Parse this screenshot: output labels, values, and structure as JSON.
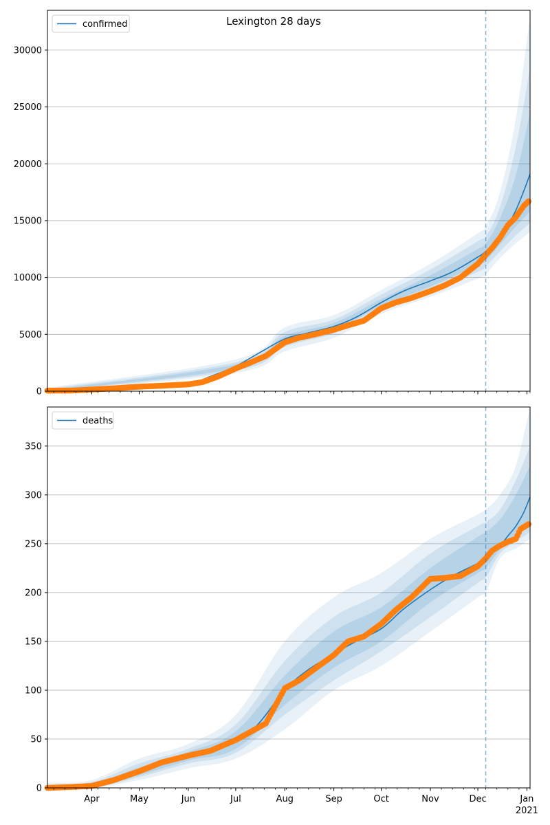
{
  "figure": {
    "title": "Lexington 28 days"
  },
  "chart_data": [
    {
      "type": "line",
      "legend": [
        "confirmed"
      ],
      "legend_position": "top-left",
      "grid": "y",
      "ylim": [
        0,
        33500
      ],
      "yticks": [
        0,
        5000,
        10000,
        15000,
        20000,
        25000,
        30000
      ],
      "x_range": [
        "2020-03-04",
        "2021-01-03"
      ],
      "vline_date": "2020-12-06",
      "colors": {
        "model": "#1f77b4",
        "observed": "#ff7f0e",
        "band": "#1f77b4",
        "vline": "#1f77b4"
      },
      "model_curve": {
        "name": "confirmed",
        "x": [
          "2020-03-04",
          "2020-04-01",
          "2020-05-01",
          "2020-06-01",
          "2020-06-15",
          "2020-07-01",
          "2020-07-15",
          "2020-08-01",
          "2020-08-15",
          "2020-09-01",
          "2020-09-15",
          "2020-10-01",
          "2020-10-15",
          "2020-11-01",
          "2020-11-15",
          "2020-12-01",
          "2020-12-06",
          "2020-12-15",
          "2020-12-20",
          "2020-12-25",
          "2020-12-30",
          "2021-01-03"
        ],
        "y": [
          0,
          100,
          350,
          700,
          1300,
          2200,
          3300,
          4600,
          5100,
          5700,
          6500,
          7800,
          8800,
          9700,
          10500,
          11800,
          12300,
          13600,
          14600,
          15900,
          17600,
          19100
        ]
      },
      "bands": {
        "x": [
          "2020-03-04",
          "2020-07-01",
          "2020-08-01",
          "2020-09-01",
          "2020-10-01",
          "2020-11-01",
          "2020-12-01",
          "2020-12-06",
          "2020-12-15",
          "2020-12-25",
          "2021-01-03"
        ],
        "upper": [
          [
            300,
            2800,
            5600,
            6700,
            8900,
            11200,
            13900,
            14500,
            17500,
            24000,
            33000
          ],
          [
            200,
            2550,
            5200,
            6300,
            8500,
            10700,
            13200,
            13600,
            16200,
            21500,
            28500
          ],
          [
            120,
            2350,
            4850,
            6000,
            8100,
            10200,
            12500,
            13000,
            15200,
            19000,
            24500
          ]
        ],
        "lower": [
          [
            0,
            1600,
            3500,
            4700,
            6800,
            8300,
            9900,
            10300,
            11700,
            13000,
            14000
          ],
          [
            0,
            1800,
            3900,
            5100,
            7200,
            8800,
            10500,
            11000,
            12300,
            13700,
            14800
          ],
          [
            0,
            2000,
            4300,
            5400,
            7500,
            9200,
            11100,
            11500,
            12900,
            14500,
            15800
          ]
        ]
      },
      "observed": {
        "x": [
          "2020-03-04",
          "2020-03-20",
          "2020-04-01",
          "2020-04-15",
          "2020-05-01",
          "2020-05-15",
          "2020-06-01",
          "2020-06-10",
          "2020-06-20",
          "2020-07-01",
          "2020-07-10",
          "2020-07-20",
          "2020-08-01",
          "2020-08-10",
          "2020-08-20",
          "2020-09-01",
          "2020-09-10",
          "2020-09-20",
          "2020-10-01",
          "2020-10-10",
          "2020-10-20",
          "2020-11-01",
          "2020-11-10",
          "2020-11-20",
          "2020-12-01",
          "2020-12-06",
          "2020-12-10",
          "2020-12-15",
          "2020-12-20",
          "2020-12-25",
          "2020-12-30",
          "2021-01-02"
        ],
        "y": [
          50,
          60,
          150,
          250,
          400,
          480,
          600,
          800,
          1300,
          2000,
          2500,
          3100,
          4300,
          4700,
          5000,
          5400,
          5800,
          6200,
          7300,
          7800,
          8200,
          8800,
          9300,
          10000,
          11200,
          12000,
          12600,
          13500,
          14600,
          15300,
          16300,
          16700
        ]
      }
    },
    {
      "type": "line",
      "legend": [
        "deaths"
      ],
      "legend_position": "top-left",
      "grid": "y",
      "ylim": [
        0,
        390
      ],
      "yticks": [
        0,
        50,
        100,
        150,
        200,
        250,
        300,
        350
      ],
      "x_range": [
        "2020-03-04",
        "2021-01-03"
      ],
      "vline_date": "2020-12-06",
      "colors": {
        "model": "#1f77b4",
        "observed": "#ff7f0e",
        "band": "#1f77b4",
        "vline": "#1f77b4"
      },
      "model_curve": {
        "name": "deaths",
        "x": [
          "2020-03-04",
          "2020-04-01",
          "2020-04-15",
          "2020-05-01",
          "2020-05-15",
          "2020-06-01",
          "2020-06-15",
          "2020-07-01",
          "2020-07-15",
          "2020-08-01",
          "2020-08-15",
          "2020-09-01",
          "2020-09-15",
          "2020-10-01",
          "2020-10-15",
          "2020-11-01",
          "2020-11-15",
          "2020-12-01",
          "2020-12-06",
          "2020-12-15",
          "2020-12-20",
          "2020-12-25",
          "2020-12-30",
          "2021-01-03"
        ],
        "y": [
          0,
          2,
          8,
          17,
          26,
          31,
          37,
          47,
          65,
          100,
          120,
          137,
          150,
          163,
          183,
          203,
          217,
          230,
          236,
          248,
          258,
          268,
          282,
          298
        ]
      },
      "bands": {
        "x": [
          "2020-03-04",
          "2020-04-01",
          "2020-05-01",
          "2020-06-01",
          "2020-07-01",
          "2020-08-01",
          "2020-09-01",
          "2020-10-01",
          "2020-11-01",
          "2020-12-01",
          "2020-12-06",
          "2020-12-15",
          "2020-12-25",
          "2021-01-03"
        ],
        "upper": [
          [
            5,
            8,
            30,
            45,
            75,
            150,
            195,
            220,
            255,
            280,
            285,
            300,
            330,
            390
          ],
          [
            3,
            6,
            25,
            40,
            65,
            130,
            175,
            200,
            240,
            268,
            272,
            285,
            315,
            350
          ],
          [
            2,
            4,
            21,
            37,
            58,
            115,
            160,
            185,
            225,
            257,
            262,
            275,
            300,
            330
          ]
        ],
        "lower": [
          [
            0,
            0,
            8,
            20,
            30,
            60,
            100,
            125,
            160,
            195,
            200,
            235,
            245,
            255
          ],
          [
            0,
            0,
            11,
            25,
            36,
            75,
            110,
            140,
            175,
            210,
            215,
            240,
            252,
            262
          ],
          [
            0,
            0,
            13,
            28,
            40,
            85,
            123,
            150,
            190,
            220,
            225,
            244,
            258,
            270
          ]
        ]
      },
      "observed": {
        "x": [
          "2020-03-04",
          "2020-03-20",
          "2020-04-01",
          "2020-04-15",
          "2020-05-01",
          "2020-05-15",
          "2020-06-01",
          "2020-06-15",
          "2020-07-01",
          "2020-07-10",
          "2020-07-20",
          "2020-08-01",
          "2020-08-10",
          "2020-08-20",
          "2020-09-01",
          "2020-09-10",
          "2020-09-20",
          "2020-10-01",
          "2020-10-10",
          "2020-10-20",
          "2020-11-01",
          "2020-11-10",
          "2020-11-20",
          "2020-12-01",
          "2020-12-06",
          "2020-12-10",
          "2020-12-15",
          "2020-12-20",
          "2020-12-25",
          "2020-12-28",
          "2021-01-02"
        ],
        "y": [
          0,
          1,
          2,
          8,
          17,
          26,
          33,
          38,
          49,
          57,
          66,
          102,
          110,
          122,
          136,
          150,
          155,
          168,
          182,
          195,
          214,
          215,
          217,
          227,
          235,
          243,
          248,
          252,
          255,
          265,
          270
        ]
      }
    }
  ],
  "x_axis": {
    "tick_labels": [
      {
        "date": "2020-04-01",
        "label": "Apr"
      },
      {
        "date": "2020-05-01",
        "label": "May"
      },
      {
        "date": "2020-06-01",
        "label": "Jun"
      },
      {
        "date": "2020-07-01",
        "label": "Jul"
      },
      {
        "date": "2020-08-01",
        "label": "Aug"
      },
      {
        "date": "2020-09-01",
        "label": "Sep"
      },
      {
        "date": "2020-10-01",
        "label": "Oct"
      },
      {
        "date": "2020-11-01",
        "label": "Nov"
      },
      {
        "date": "2020-12-01",
        "label": "Dec"
      },
      {
        "date": "2021-01-01",
        "label": "Jan"
      }
    ],
    "year_label": "2021"
  }
}
